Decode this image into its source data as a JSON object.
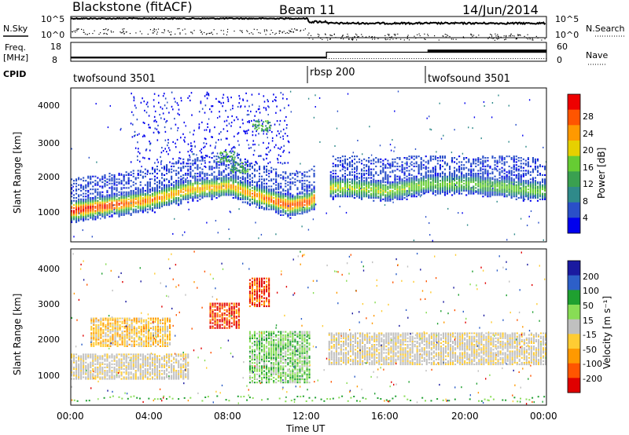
{
  "header": {
    "station": "Blackstone (fitACF)",
    "beam": "Beam 11",
    "date": "14/Jun/2014"
  },
  "status_panels": {
    "nsky_label": "N.Sky",
    "nsky_ticks": [
      "10^5",
      "10^0"
    ],
    "nsearch_label": "N.Search",
    "nsearch_ticks": [
      "10^5",
      "10^0"
    ],
    "freq_label_line1": "Freq.",
    "freq_label_line2": "[MHz]",
    "freq_ticks": [
      "18",
      "8"
    ],
    "nave_label": "Nave",
    "nave_ticks": [
      "60",
      "0"
    ],
    "cpid_label": "CPID",
    "cpid_segments": [
      {
        "name": "twofsound 3501",
        "start_hr": 0
      },
      {
        "name": "rbsp 200",
        "start_hr": 12
      },
      {
        "name": "twofsound 3501",
        "start_hr": 18
      }
    ]
  },
  "power_panel": {
    "ylabel": "Slant Range [km]",
    "yticks": [
      "4000",
      "3000",
      "2000",
      "1000"
    ],
    "colorbar_label": "Power [dB]",
    "colorbar_ticks": [
      "28",
      "24",
      "20",
      "16",
      "12",
      "8",
      "4"
    ],
    "colors": [
      "#0000ee",
      "#2a4fc8",
      "#2f8a8a",
      "#3aa050",
      "#66cc33",
      "#e6d000",
      "#ff9900",
      "#ff5500",
      "#ee0000"
    ]
  },
  "velocity_panel": {
    "ylabel": "Slant Range [km]",
    "yticks": [
      "4000",
      "3000",
      "2000",
      "1000"
    ],
    "colorbar_label": "Velocity [m s⁻¹]",
    "colorbar_ticks": [
      "200",
      "100",
      "50",
      "15",
      "-15",
      "-50",
      "-100",
      "-200"
    ],
    "colors": [
      "#1a1aa0",
      "#2d5fc8",
      "#1fa030",
      "#88dd55",
      "#c0c0c0",
      "#ffcc33",
      "#ff9900",
      "#ff5500",
      "#e00000"
    ]
  },
  "time_axis": {
    "xlabel": "Time UT",
    "ticks": [
      "00:00",
      "04:00",
      "08:00",
      "12:00",
      "16:00",
      "20:00",
      "00:00"
    ]
  },
  "chart_data": [
    {
      "type": "heatmap",
      "title": "Power",
      "xlabel": "Time UT",
      "ylabel": "Slant Range [km]",
      "xlim": [
        0,
        24
      ],
      "ylim": [
        200,
        4500
      ],
      "colorbar": {
        "label": "Power [dB]",
        "range": [
          0,
          32
        ]
      },
      "echo_band": {
        "time_hr": [
          0,
          2,
          4,
          6,
          8,
          9.5,
          11,
          12,
          13,
          14,
          16,
          18,
          20,
          22,
          24
        ],
        "center_km": [
          1050,
          1200,
          1350,
          1650,
          1750,
          1450,
          1200,
          1300,
          1700,
          1700,
          1600,
          1800,
          1800,
          1700,
          1600
        ],
        "peak_power_db": [
          30,
          28,
          24,
          22,
          22,
          24,
          28,
          26,
          20,
          18,
          18,
          16,
          16,
          16,
          16
        ]
      },
      "data_gap_hr": [
        12.3,
        13
      ]
    },
    {
      "type": "heatmap",
      "title": "Velocity",
      "xlabel": "Time UT",
      "ylabel": "Slant Range [km]",
      "xlim": [
        0,
        24
      ],
      "ylim": [
        200,
        4500
      ],
      "colorbar": {
        "label": "Velocity [m s⁻¹]",
        "range": [
          -250,
          250
        ]
      },
      "features": [
        {
          "time_hr": [
            0,
            6
          ],
          "range_km": [
            900,
            1600
          ],
          "velocity": "-15 to 15"
        },
        {
          "time_hr": [
            1,
            5
          ],
          "range_km": [
            1800,
            2600
          ],
          "velocity": "-50 to -15"
        },
        {
          "time_hr": [
            7,
            8.5
          ],
          "range_km": [
            2300,
            3000
          ],
          "velocity": "-200 to -100"
        },
        {
          "time_hr": [
            9,
            10
          ],
          "range_km": [
            2900,
            3700
          ],
          "velocity": "-200 to -100"
        },
        {
          "time_hr": [
            9,
            12
          ],
          "range_km": [
            800,
            2200
          ],
          "velocity": "15 to 50"
        },
        {
          "time_hr": [
            13,
            24
          ],
          "range_km": [
            1300,
            2200
          ],
          "velocity": "-15 to 15"
        }
      ]
    }
  ]
}
